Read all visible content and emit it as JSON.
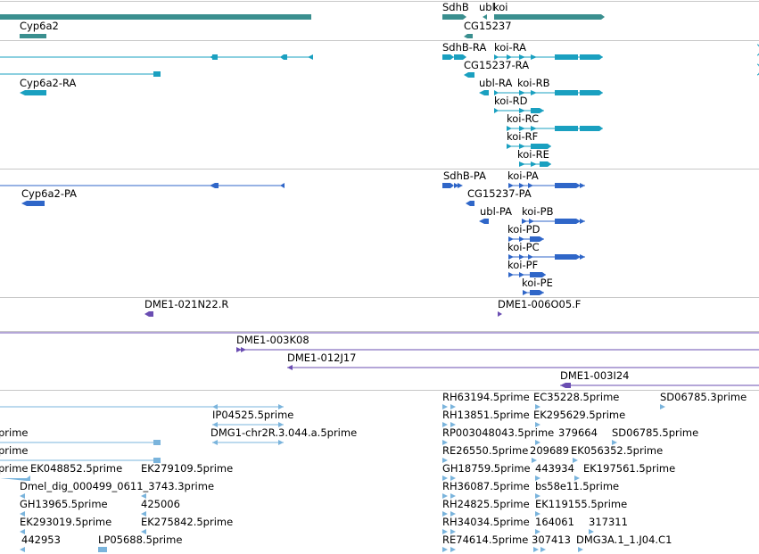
{
  "colors": {
    "gene": "#3a8f8f",
    "transcript": "#1aa0c0",
    "cds": "#2f66c8",
    "clone": "#6a4db2",
    "est": "#7ab4dc",
    "separator": "#c8c8c8"
  },
  "tracks": {
    "genes": [
      {
        "label": "Cyp6a2"
      },
      {
        "label": "SdhB"
      },
      {
        "label": "ubl"
      },
      {
        "label": "koi"
      },
      {
        "label": "CG15237"
      }
    ],
    "transcripts": [
      {
        "label": "SdhB-RA"
      },
      {
        "label": "koi-RA"
      },
      {
        "label": "Cyp6a2-RA"
      },
      {
        "label": "CG15237-RA"
      },
      {
        "label": "ubl-RA"
      },
      {
        "label": "koi-RB"
      },
      {
        "label": "koi-RD"
      },
      {
        "label": "koi-RC"
      },
      {
        "label": "koi-RF"
      },
      {
        "label": "koi-RE"
      }
    ],
    "proteins": [
      {
        "label": "SdhB-PA"
      },
      {
        "label": "koi-PA"
      },
      {
        "label": "Cyp6a2-PA"
      },
      {
        "label": "CG15237-PA"
      },
      {
        "label": "ubl-PA"
      },
      {
        "label": "koi-PB"
      },
      {
        "label": "koi-PD"
      },
      {
        "label": "koi-PC"
      },
      {
        "label": "koi-PF"
      },
      {
        "label": "koi-PE"
      }
    ],
    "bac_ends": [
      {
        "label": "DME1-021N22.R"
      },
      {
        "label": "DME1-006O05.F"
      }
    ],
    "bac_clones": [
      {
        "label": "DME1-003K08"
      },
      {
        "label": "DME1-012J17"
      },
      {
        "label": "DME1-003I24"
      }
    ],
    "ests": [
      {
        "label": "RH63194.5prime"
      },
      {
        "label": "EC35228.5prime"
      },
      {
        "label": "SD06785.3prime"
      },
      {
        "label": "IP04525.5prime"
      },
      {
        "label": "RH13851.5prime"
      },
      {
        "label": "EK295629.5prime"
      },
      {
        "label": "prime"
      },
      {
        "label": "DMG1-chr2R.3.044.a.5prime"
      },
      {
        "label": "RP003048043.5prime"
      },
      {
        "label": "379664"
      },
      {
        "label": "SD06785.5prime"
      },
      {
        "label": "prime"
      },
      {
        "label": "RE26550.5prime"
      },
      {
        "label": "209689"
      },
      {
        "label": "EK056352.5prime"
      },
      {
        "label": "prime"
      },
      {
        "label": "EK048852.5prime"
      },
      {
        "label": "EK279109.5prime"
      },
      {
        "label": "GH18759.5prime"
      },
      {
        "label": "443934"
      },
      {
        "label": "EK197561.5prime"
      },
      {
        "label": "Dmel_dig_000499_0611_3743.3prime"
      },
      {
        "label": "RH36087.5prime"
      },
      {
        "label": "bs58e11.5prime"
      },
      {
        "label": "GH13965.5prime"
      },
      {
        "label": "425006"
      },
      {
        "label": "RH24825.5prime"
      },
      {
        "label": "EK119155.5prime"
      },
      {
        "label": "EK293019.5prime"
      },
      {
        "label": "EK275842.5prime"
      },
      {
        "label": "RH34034.5prime"
      },
      {
        "label": "164061"
      },
      {
        "label": "317311"
      },
      {
        "label": "442953"
      },
      {
        "label": "LP05688.5prime"
      },
      {
        "label": "RE74614.5prime"
      },
      {
        "label": "307413"
      },
      {
        "label": "DMG3A.1_1.J04.C1"
      }
    ]
  }
}
